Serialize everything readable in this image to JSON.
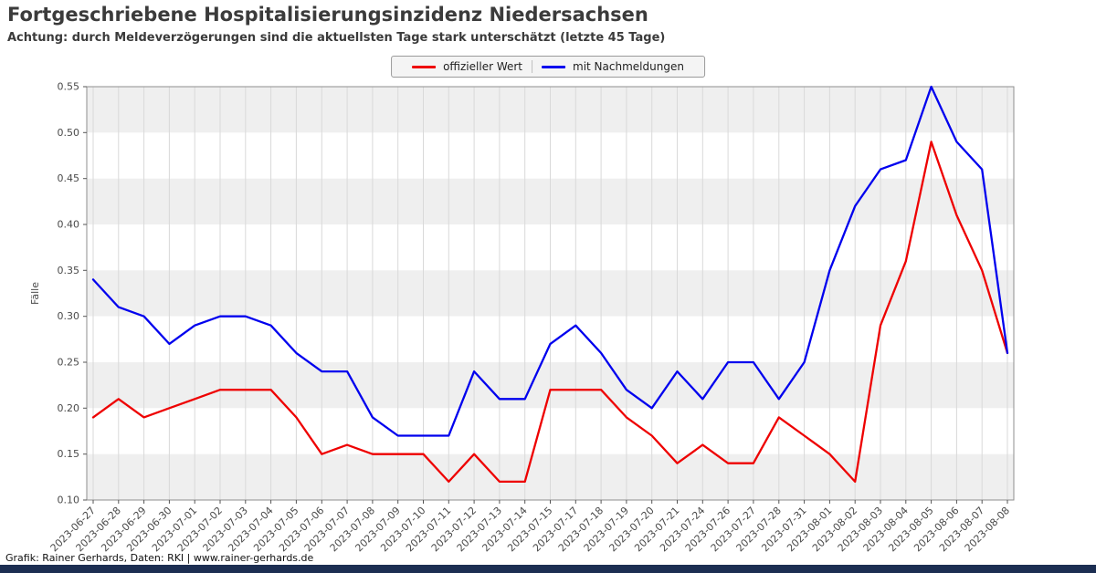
{
  "header": {
    "title": "Fortgeschriebene Hospitalisierungsinzidenz Niedersachsen",
    "subtitle": "Achtung: durch Meldeverzögerungen sind die aktuellsten Tage stark unterschätzt (letzte 45 Tage)"
  },
  "footer": {
    "credit": "Grafik: Rainer Gerhards, Daten: RKI | www.rainer-gerhards.de"
  },
  "colors": {
    "band": "#efefef",
    "grid": "#d9d9d9",
    "axis": "#8f8f8f",
    "tick": "#555555",
    "bottom_bar": "#1c2e52",
    "official_red": "#ee0000",
    "nachmeldungen_blue": "#0000ee"
  },
  "chart_data": {
    "type": "line",
    "title": "Fortgeschriebene Hospitalisierungsinzidenz Niedersachsen",
    "subtitle": "Achtung: durch Meldeverzögerungen sind die aktuellsten Tage stark unterschätzt (letzte 45 Tage)",
    "xlabel": "",
    "ylabel": "Fälle",
    "ylim": [
      0.1,
      0.55
    ],
    "ytick_step": 0.05,
    "grid": true,
    "legend_position": "top-center",
    "categories": [
      "2023-06-27",
      "2023-06-28",
      "2023-06-29",
      "2023-06-30",
      "2023-07-01",
      "2023-07-02",
      "2023-07-03",
      "2023-07-04",
      "2023-07-05",
      "2023-07-06",
      "2023-07-07",
      "2023-07-08",
      "2023-07-09",
      "2023-07-10",
      "2023-07-11",
      "2023-07-12",
      "2023-07-13",
      "2023-07-14",
      "2023-07-15",
      "2023-07-17",
      "2023-07-18",
      "2023-07-19",
      "2023-07-20",
      "2023-07-21",
      "2023-07-24",
      "2023-07-26",
      "2023-07-27",
      "2023-07-28",
      "2023-07-31",
      "2023-08-01",
      "2023-08-02",
      "2023-08-03",
      "2023-08-04",
      "2023-08-05",
      "2023-08-06",
      "2023-08-07",
      "2023-08-08"
    ],
    "series": [
      {
        "name": "offizieller Wert",
        "color": "#ee0000",
        "values": [
          0.19,
          0.21,
          0.19,
          0.2,
          0.21,
          0.22,
          0.22,
          0.22,
          0.19,
          0.15,
          0.16,
          0.15,
          0.15,
          0.15,
          0.12,
          0.15,
          0.12,
          0.12,
          0.22,
          0.22,
          0.22,
          0.19,
          0.17,
          0.14,
          0.16,
          0.14,
          0.14,
          0.19,
          0.17,
          0.15,
          0.12,
          0.29,
          0.36,
          0.49,
          0.41,
          0.35,
          0.26
        ]
      },
      {
        "name": "mit Nachmeldungen",
        "color": "#0000ee",
        "values": [
          0.34,
          0.31,
          0.3,
          0.27,
          0.29,
          0.3,
          0.3,
          0.29,
          0.26,
          0.24,
          0.24,
          0.19,
          0.17,
          0.17,
          0.17,
          0.24,
          0.21,
          0.21,
          0.27,
          0.29,
          0.26,
          0.22,
          0.2,
          0.24,
          0.21,
          0.25,
          0.25,
          0.21,
          0.25,
          0.35,
          0.42,
          0.46,
          0.47,
          0.55,
          0.49,
          0.46,
          0.26
        ]
      }
    ]
  }
}
